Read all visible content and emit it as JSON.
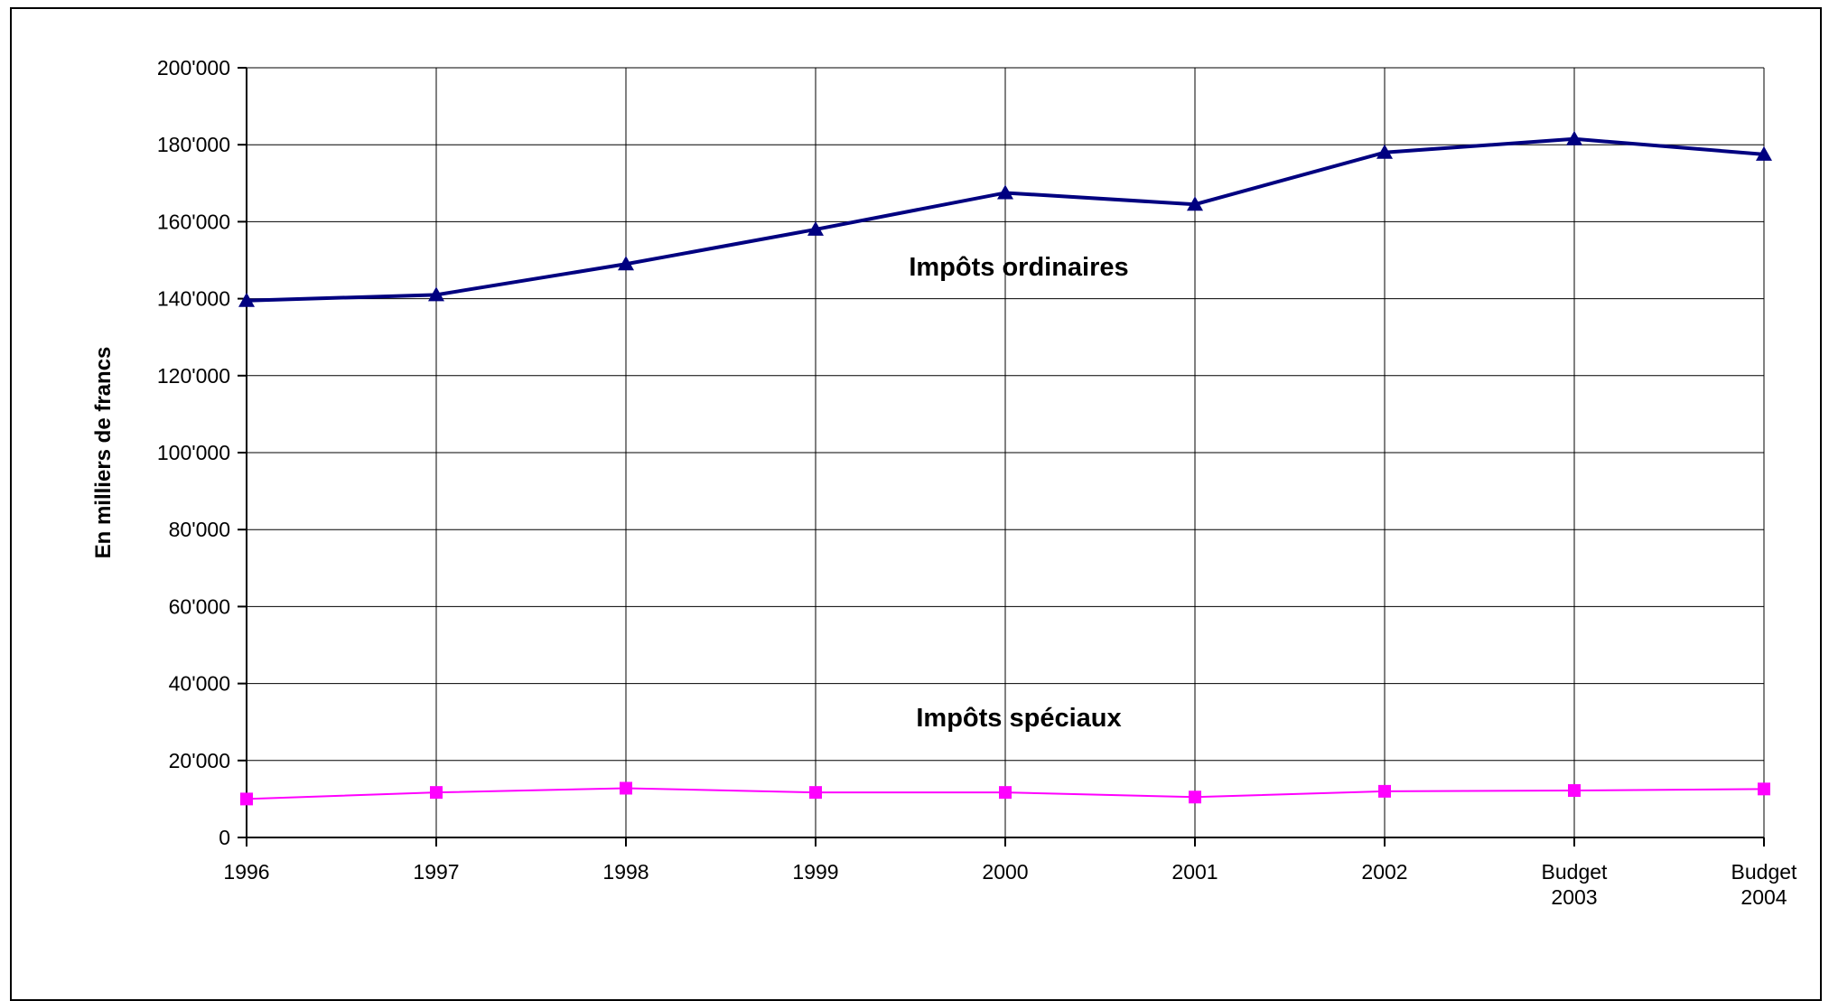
{
  "chart_data": {
    "type": "line",
    "categories": [
      [
        "1996"
      ],
      [
        "1997"
      ],
      [
        "1998"
      ],
      [
        "1999"
      ],
      [
        "2000"
      ],
      [
        "2001"
      ],
      [
        "2002"
      ],
      [
        "Budget",
        "2003"
      ],
      [
        "Budget",
        "2004"
      ]
    ],
    "series": [
      {
        "key": "ordinaires",
        "values": [
          139500,
          141000,
          149000,
          158000,
          167500,
          164500,
          178000,
          181500,
          177500
        ],
        "color": "#000080",
        "marker": "triangle"
      },
      {
        "key": "speciaux",
        "values": [
          10000,
          11700,
          12800,
          11700,
          11700,
          10500,
          12000,
          12200,
          12600
        ],
        "color": "#ff00ff",
        "marker": "square"
      }
    ],
    "annotations": {
      "ordinaires": "Impôts ordinaires",
      "speciaux": "Impôts spéciaux"
    },
    "ylabel": "En  milliers  de  francs",
    "ylim": [
      0,
      200000
    ],
    "yticks": [
      "0",
      "20'000",
      "40'000",
      "60'000",
      "80'000",
      "100'000",
      "120'000",
      "140'000",
      "160'000",
      "180'000",
      "200'000"
    ],
    "grid": true
  }
}
